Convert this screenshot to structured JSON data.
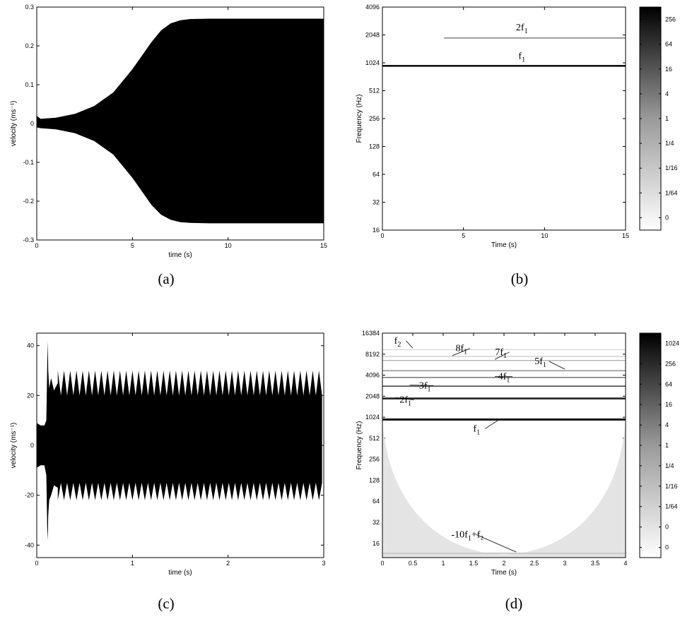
{
  "chart_data": [
    {
      "id": "a",
      "panel_label": "(a)",
      "type": "line",
      "xlabel": "time (s)",
      "ylabel": "velocity (ms⁻¹)",
      "xlim": [
        0,
        15
      ],
      "ylim": [
        -0.3,
        0.3
      ],
      "xticks": [
        0,
        5,
        10,
        15
      ],
      "xtick_labels": [
        "0",
        "5",
        "10",
        "15"
      ],
      "yticks": [
        -0.3,
        -0.2,
        -0.1,
        0,
        0.1,
        0.2,
        0.3
      ],
      "ytick_labels": [
        "-0.3",
        "-0.2",
        "-0.1",
        "0",
        "0.1",
        "0.2",
        "0.3"
      ],
      "envelope": {
        "x": [
          0,
          0.2,
          1,
          2,
          3,
          4,
          5,
          5.5,
          6,
          6.5,
          7,
          7.5,
          8,
          9,
          10,
          12,
          15
        ],
        "upper": [
          0.02,
          0.012,
          0.015,
          0.025,
          0.045,
          0.08,
          0.14,
          0.175,
          0.21,
          0.24,
          0.258,
          0.266,
          0.269,
          0.27,
          0.27,
          0.27,
          0.27
        ],
        "lower": [
          -0.01,
          -0.012,
          -0.015,
          -0.025,
          -0.045,
          -0.08,
          -0.14,
          -0.175,
          -0.21,
          -0.235,
          -0.248,
          -0.254,
          -0.256,
          -0.257,
          -0.257,
          -0.257,
          -0.257
        ]
      }
    },
    {
      "id": "b",
      "panel_label": "(b)",
      "type": "heatmap",
      "xlabel": "Time (s)",
      "ylabel": "Frequency (Hz)",
      "xlim": [
        0,
        15
      ],
      "ylim": [
        16,
        4096
      ],
      "yscale": "log2",
      "xticks": [
        0,
        5,
        10,
        15
      ],
      "xtick_labels": [
        "0",
        "5",
        "10",
        "15"
      ],
      "yticks": [
        16,
        32,
        64,
        128,
        256,
        512,
        1024,
        2048,
        4096
      ],
      "ytick_labels": [
        "16",
        "32",
        "64",
        "128",
        "256",
        "512",
        "1024",
        "2048",
        "4096"
      ],
      "colorbar_labels": [
        "256",
        "64",
        "16",
        "4",
        "1",
        "1/4",
        "1/16",
        "1/64",
        "0"
      ],
      "ridges": [
        {
          "freq": 950,
          "t_start": 0,
          "t_end": 15,
          "shade": "#111111",
          "width": 2.6
        },
        {
          "freq": 1900,
          "t_start": 3.8,
          "t_end": 15,
          "shade": "#888888",
          "width": 1.6
        }
      ],
      "annotations": [
        {
          "base": "2f",
          "sub": "1",
          "x": 8.6,
          "freq": 2300
        },
        {
          "base": "f",
          "sub": "1",
          "x": 8.6,
          "freq": 1130
        }
      ]
    },
    {
      "id": "c",
      "panel_label": "(c)",
      "type": "line",
      "xlabel": "time (s)",
      "ylabel": "velocity (ms⁻¹)",
      "xlim": [
        0,
        3
      ],
      "ylim": [
        -45,
        45
      ],
      "xticks": [
        0,
        1,
        2,
        3
      ],
      "xtick_labels": [
        "0",
        "1",
        "2",
        "3"
      ],
      "yticks": [
        -40,
        -20,
        0,
        20,
        40
      ],
      "ytick_labels": [
        "-40",
        "-20",
        "0",
        "20",
        "40"
      ],
      "burst": {
        "x": [
          0,
          0.04,
          0.08,
          0.1,
          0.11,
          0.115,
          0.12,
          0.13,
          0.15,
          0.18,
          0.22
        ],
        "upper": [
          9,
          8,
          8,
          10,
          33,
          42,
          30,
          23,
          27,
          22,
          25
        ],
        "lower": [
          -9,
          -8,
          -8,
          -12,
          -34,
          -38,
          -28,
          -22,
          -20,
          -16,
          -17
        ]
      },
      "steady": {
        "t_start": 0.22,
        "period": 0.065,
        "upper_min": 20,
        "upper_max": 30,
        "lower_min": -15,
        "lower_max": -22
      }
    },
    {
      "id": "d",
      "panel_label": "(d)",
      "type": "heatmap",
      "xlabel": "Time (s)",
      "ylabel": "Frequency (Hz)",
      "xlim": [
        0,
        4
      ],
      "ylim": [
        10,
        16384
      ],
      "yscale": "log2",
      "xticks": [
        0,
        0.5,
        1,
        1.5,
        2,
        2.5,
        3,
        3.5,
        4
      ],
      "xtick_labels": [
        "0",
        "0.5",
        "1",
        "1.5",
        "2",
        "2.5",
        "3",
        "3.5",
        "4"
      ],
      "yticks": [
        16,
        32,
        64,
        128,
        256,
        512,
        1024,
        2048,
        4096,
        8192,
        16384
      ],
      "ytick_labels": [
        "16",
        "32",
        "64",
        "128",
        "256",
        "512",
        "1024",
        "2048",
        "4096",
        "8192",
        "16384"
      ],
      "colorbar_labels": [
        "1024",
        "256",
        "64",
        "16",
        "4",
        "1",
        "1/4",
        "1/16",
        "1/64",
        "0",
        "0"
      ],
      "ridges": [
        {
          "freq": 950,
          "shade": "#111111",
          "width": 3
        },
        {
          "freq": 1900,
          "shade": "#222222",
          "width": 2.6
        },
        {
          "freq": 2850,
          "shade": "#555555",
          "width": 1.8
        },
        {
          "freq": 3800,
          "shade": "#777777",
          "width": 1.5
        },
        {
          "freq": 4750,
          "shade": "#888888",
          "width": 1.3
        },
        {
          "freq": 6650,
          "shade": "#aaaaaa",
          "width": 1.2
        },
        {
          "freq": 7600,
          "shade": "#bbbbbb",
          "width": 1.1
        },
        {
          "freq": 9500,
          "shade": "#cccccc",
          "width": 1
        },
        {
          "freq": 11.5,
          "shade": "#cccccc",
          "width": 2.2
        }
      ],
      "annotations": [
        {
          "base": "f",
          "sub": "2",
          "x": 0.25,
          "freq": 11600,
          "ax": 0.5,
          "afreq": 10000
        },
        {
          "base": "8f",
          "sub": "1",
          "x": 1.3,
          "freq": 9000,
          "ax": 1.15,
          "afreq": 7800
        },
        {
          "base": "7f",
          "sub": "1",
          "x": 1.95,
          "freq": 8000,
          "ax": 1.85,
          "afreq": 6900
        },
        {
          "base": "5f",
          "sub": "1",
          "x": 2.6,
          "freq": 5900,
          "ax": 3.0,
          "afreq": 5000
        },
        {
          "base": "4f",
          "sub": "1",
          "x": 2.0,
          "freq": 3550,
          "ax": 1.85,
          "afreq": 3900
        },
        {
          "base": "3f",
          "sub": "1",
          "x": 0.7,
          "freq": 2650,
          "ax": 0.45,
          "afreq": 2950
        },
        {
          "base": "2f",
          "sub": "1",
          "x": 0.38,
          "freq": 1650,
          "ax": 0.22,
          "afreq": 1950
        },
        {
          "base": "f",
          "sub": "1",
          "x": 1.55,
          "freq": 640,
          "ax": 1.9,
          "afreq": 920
        },
        {
          "base": "-10f",
          "sub": "1",
          "tail": "+f₂",
          "x": 1.4,
          "freq": 19.5,
          "ax": 2.2,
          "afreq": 12
        }
      ]
    }
  ]
}
